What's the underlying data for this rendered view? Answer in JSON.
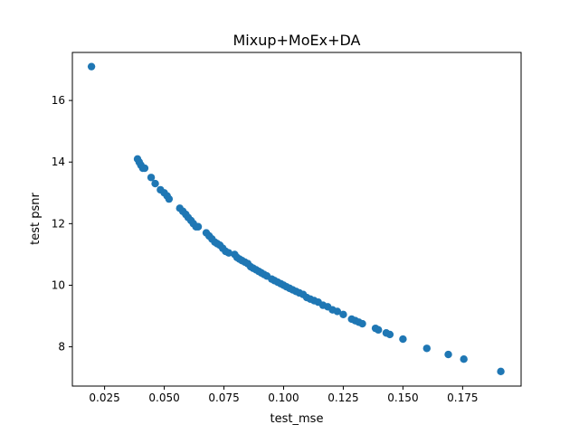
{
  "chart_data": {
    "type": "scatter",
    "title": "Mixup+MoEx+DA",
    "xlabel": "test_mse",
    "ylabel": "test psnr",
    "xlim": [
      0.0115,
      0.1995
    ],
    "ylim": [
      6.725,
      17.56
    ],
    "xticks": [
      0.025,
      0.05,
      0.075,
      0.1,
      0.125,
      0.15,
      0.175
    ],
    "xtick_labels": [
      "0.025",
      "0.050",
      "0.075",
      "0.100",
      "0.125",
      "0.150",
      "0.175"
    ],
    "yticks": [
      8,
      10,
      12,
      14,
      16
    ],
    "ytick_labels": [
      "8",
      "10",
      "12",
      "14",
      "16"
    ],
    "grid": false,
    "marker_color": "#1f77b4",
    "series": [
      {
        "name": "runs",
        "x": [
          0.0195,
          0.0388,
          0.0395,
          0.0402,
          0.041,
          0.0418,
          0.0445,
          0.0462,
          0.0484,
          0.05,
          0.0512,
          0.052,
          0.0565,
          0.0578,
          0.059,
          0.06,
          0.0612,
          0.0622,
          0.0633,
          0.0642,
          0.0676,
          0.0688,
          0.07,
          0.0712,
          0.0722,
          0.0733,
          0.0745,
          0.0757,
          0.077,
          0.0795,
          0.0805,
          0.0815,
          0.0826,
          0.0838,
          0.085,
          0.0862,
          0.0873,
          0.0885,
          0.0896,
          0.0907,
          0.0918,
          0.093,
          0.095,
          0.0962,
          0.0975,
          0.0988,
          0.1,
          0.1012,
          0.1025,
          0.1038,
          0.1052,
          0.1066,
          0.1082,
          0.1097,
          0.1112,
          0.1128,
          0.1145,
          0.1165,
          0.1185,
          0.1205,
          0.1225,
          0.125,
          0.1285,
          0.13,
          0.1315,
          0.133,
          0.1385,
          0.1397,
          0.143,
          0.1445,
          0.15,
          0.16,
          0.169,
          0.1755,
          0.191
        ],
        "y": [
          17.1,
          14.1,
          14.0,
          13.9,
          13.8,
          13.8,
          13.5,
          13.3,
          13.1,
          13.0,
          12.9,
          12.8,
          12.5,
          12.4,
          12.3,
          12.2,
          12.1,
          12.0,
          11.9,
          11.9,
          11.7,
          11.6,
          11.5,
          11.4,
          11.35,
          11.3,
          11.2,
          11.1,
          11.05,
          11.0,
          10.9,
          10.85,
          10.8,
          10.75,
          10.7,
          10.6,
          10.55,
          10.5,
          10.45,
          10.4,
          10.35,
          10.3,
          10.2,
          10.15,
          10.1,
          10.05,
          10.0,
          9.95,
          9.9,
          9.85,
          9.8,
          9.75,
          9.7,
          9.6,
          9.55,
          9.5,
          9.45,
          9.35,
          9.3,
          9.2,
          9.15,
          9.05,
          8.9,
          8.85,
          8.8,
          8.75,
          8.6,
          8.55,
          8.45,
          8.4,
          8.25,
          7.95,
          7.75,
          7.6,
          7.2
        ]
      }
    ]
  }
}
